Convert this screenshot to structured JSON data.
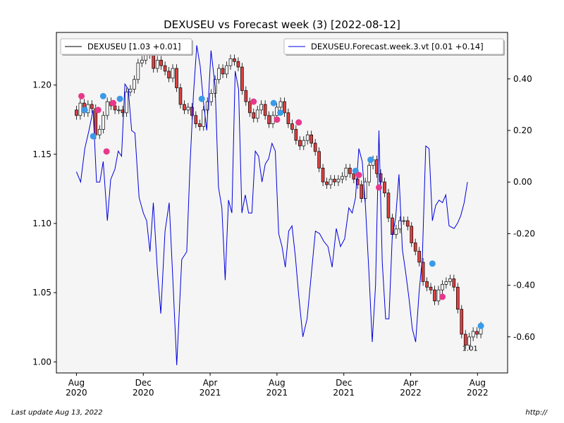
{
  "chart_data": {
    "type": "candlestick+line",
    "title": "DEXUSEU vs Forecast week (3) [2022-08-12]",
    "legend": [
      {
        "name": "DEXUSEU [1.03 +0.01]",
        "color": "#000000",
        "placement": "top-left"
      },
      {
        "name": "DEXUSEU.Forecast.week.3.vt [0.01 +0.14]",
        "color": "#0000dd",
        "placement": "top-right"
      }
    ],
    "x_ticks": [
      {
        "t": 0.0,
        "label": "Aug\n2020"
      },
      {
        "t": 4.0,
        "label": "Dec\n2020"
      },
      {
        "t": 8.0,
        "label": "Apr\n2021"
      },
      {
        "t": 12.0,
        "label": "Aug\n2021"
      },
      {
        "t": 16.0,
        "label": "Dec\n2021"
      },
      {
        "t": 20.0,
        "label": "Apr\n2022"
      },
      {
        "t": 24.0,
        "label": "Aug\n2022"
      }
    ],
    "xlim": [
      -1.2,
      25.8
    ],
    "y_left": {
      "ticks": [
        "1.00",
        "1.05",
        "1.10",
        "1.15",
        "1.20"
      ],
      "lim": [
        0.992,
        1.238
      ]
    },
    "y_right": {
      "ticks": [
        "-0.60",
        "-0.40",
        "-0.20",
        "0.00",
        "0.20",
        "0.40"
      ],
      "lim": [
        -0.74,
        0.58
      ]
    },
    "annotation": {
      "text": "1.01",
      "t": 23.55,
      "value": 1.008
    },
    "candles_weekly_close": [
      1.178,
      1.187,
      1.18,
      1.186,
      1.183,
      1.164,
      1.168,
      1.178,
      1.188,
      1.185,
      1.182,
      1.182,
      1.18,
      1.195,
      1.197,
      1.204,
      1.216,
      1.218,
      1.222,
      1.228,
      1.212,
      1.218,
      1.214,
      1.21,
      1.205,
      1.212,
      1.198,
      1.186,
      1.182,
      1.184,
      1.178,
      1.172,
      1.17,
      1.182,
      1.188,
      1.194,
      1.204,
      1.212,
      1.208,
      1.214,
      1.219,
      1.217,
      1.213,
      1.196,
      1.188,
      1.18,
      1.176,
      1.182,
      1.186,
      1.178,
      1.172,
      1.178,
      1.184,
      1.188,
      1.18,
      1.172,
      1.168,
      1.16,
      1.156,
      1.16,
      1.164,
      1.158,
      1.152,
      1.14,
      1.13,
      1.128,
      1.132,
      1.13,
      1.132,
      1.134,
      1.14,
      1.136,
      1.132,
      1.128,
      1.118,
      1.13,
      1.142,
      1.146,
      1.136,
      1.13,
      1.122,
      1.104,
      1.092,
      1.096,
      1.102,
      1.102,
      1.098,
      1.086,
      1.08,
      1.072,
      1.058,
      1.054,
      1.052,
      1.044,
      1.052,
      1.056,
      1.058,
      1.06,
      1.054,
      1.038,
      1.02,
      1.012,
      1.018,
      1.022,
      1.02,
      1.026
    ],
    "forecast_series": [
      [
        0.0,
        0.04
      ],
      [
        0.25,
        0.0
      ],
      [
        0.5,
        0.13
      ],
      [
        0.75,
        0.2
      ],
      [
        1.0,
        0.28
      ],
      [
        1.2,
        0.0
      ],
      [
        1.4,
        0.0
      ],
      [
        1.6,
        0.08
      ],
      [
        1.85,
        -0.15
      ],
      [
        2.05,
        0.01
      ],
      [
        2.3,
        0.05
      ],
      [
        2.5,
        0.12
      ],
      [
        2.7,
        0.1
      ],
      [
        2.9,
        0.38
      ],
      [
        3.1,
        0.36
      ],
      [
        3.3,
        0.2
      ],
      [
        3.5,
        0.19
      ],
      [
        3.75,
        -0.06
      ],
      [
        4.0,
        -0.12
      ],
      [
        4.2,
        -0.15
      ],
      [
        4.4,
        -0.27
      ],
      [
        4.6,
        -0.08
      ],
      [
        4.85,
        -0.35
      ],
      [
        5.05,
        -0.51
      ],
      [
        5.3,
        -0.19
      ],
      [
        5.55,
        -0.08
      ],
      [
        5.8,
        -0.42
      ],
      [
        6.0,
        -0.71
      ],
      [
        6.3,
        -0.3
      ],
      [
        6.6,
        -0.27
      ],
      [
        6.8,
        0.07
      ],
      [
        7.0,
        0.34
      ],
      [
        7.2,
        0.53
      ],
      [
        7.4,
        0.45
      ],
      [
        7.6,
        0.31
      ],
      [
        7.8,
        0.2
      ],
      [
        8.05,
        0.51
      ],
      [
        8.3,
        0.37
      ],
      [
        8.5,
        -0.02
      ],
      [
        8.7,
        -0.1
      ],
      [
        8.9,
        -0.38
      ],
      [
        9.1,
        -0.07
      ],
      [
        9.3,
        -0.12
      ],
      [
        9.5,
        0.43
      ],
      [
        9.7,
        0.36
      ],
      [
        9.9,
        -0.12
      ],
      [
        10.1,
        -0.05
      ],
      [
        10.3,
        -0.12
      ],
      [
        10.5,
        -0.12
      ],
      [
        10.7,
        0.12
      ],
      [
        10.9,
        0.1
      ],
      [
        11.1,
        0.0
      ],
      [
        11.3,
        0.07
      ],
      [
        11.5,
        0.09
      ],
      [
        11.7,
        0.15
      ],
      [
        11.9,
        0.12
      ],
      [
        12.1,
        -0.2
      ],
      [
        12.3,
        -0.25
      ],
      [
        12.5,
        -0.33
      ],
      [
        12.7,
        -0.19
      ],
      [
        12.9,
        -0.17
      ],
      [
        13.1,
        -0.29
      ],
      [
        13.3,
        -0.44
      ],
      [
        13.55,
        -0.6
      ],
      [
        13.8,
        -0.53
      ],
      [
        14.05,
        -0.36
      ],
      [
        14.3,
        -0.19
      ],
      [
        14.55,
        -0.2
      ],
      [
        14.8,
        -0.23
      ],
      [
        15.05,
        -0.25
      ],
      [
        15.3,
        -0.33
      ],
      [
        15.55,
        -0.18
      ],
      [
        15.8,
        -0.25
      ],
      [
        16.05,
        -0.22
      ],
      [
        16.3,
        -0.1
      ],
      [
        16.5,
        -0.12
      ],
      [
        16.7,
        -0.06
      ],
      [
        16.9,
        0.13
      ],
      [
        17.1,
        0.08
      ],
      [
        17.3,
        -0.1
      ],
      [
        17.5,
        -0.35
      ],
      [
        17.7,
        -0.62
      ],
      [
        17.9,
        -0.4
      ],
      [
        18.1,
        0.2
      ],
      [
        18.3,
        -0.31
      ],
      [
        18.5,
        -0.53
      ],
      [
        18.7,
        -0.53
      ],
      [
        18.9,
        -0.21
      ],
      [
        19.1,
        -0.14
      ],
      [
        19.3,
        0.03
      ],
      [
        19.5,
        -0.26
      ],
      [
        19.7,
        -0.35
      ],
      [
        19.9,
        -0.45
      ],
      [
        20.1,
        -0.57
      ],
      [
        20.3,
        -0.62
      ],
      [
        20.5,
        -0.43
      ],
      [
        20.7,
        -0.29
      ],
      [
        20.9,
        0.14
      ],
      [
        21.1,
        0.13
      ],
      [
        21.3,
        -0.15
      ],
      [
        21.5,
        -0.09
      ],
      [
        21.7,
        -0.07
      ],
      [
        21.9,
        -0.08
      ],
      [
        22.1,
        -0.05
      ],
      [
        22.3,
        -0.17
      ],
      [
        22.6,
        -0.18
      ],
      [
        22.8,
        -0.16
      ],
      [
        23.0,
        -0.13
      ],
      [
        23.2,
        -0.08
      ],
      [
        23.4,
        0.0
      ]
    ],
    "markers": [
      {
        "t": 0.3,
        "value": 1.192,
        "color": "#e8388a"
      },
      {
        "t": 0.5,
        "value": 1.182,
        "color": "#3b9ae8"
      },
      {
        "t": 1.0,
        "value": 1.163,
        "color": "#3b9ae8"
      },
      {
        "t": 1.3,
        "value": 1.182,
        "color": "#e8388a"
      },
      {
        "t": 1.6,
        "value": 1.192,
        "color": "#3b9ae8"
      },
      {
        "t": 1.8,
        "value": 1.152,
        "color": "#e8388a"
      },
      {
        "t": 2.2,
        "value": 1.187,
        "color": "#e8388a"
      },
      {
        "t": 2.6,
        "value": 1.19,
        "color": "#3b9ae8"
      },
      {
        "t": 7.5,
        "value": 1.19,
        "color": "#3b9ae8"
      },
      {
        "t": 10.6,
        "value": 1.188,
        "color": "#e8388a"
      },
      {
        "t": 11.8,
        "value": 1.187,
        "color": "#3b9ae8"
      },
      {
        "t": 12.0,
        "value": 1.175,
        "color": "#e8388a"
      },
      {
        "t": 12.2,
        "value": 1.18,
        "color": "#3b9ae8"
      },
      {
        "t": 13.3,
        "value": 1.173,
        "color": "#e8388a"
      },
      {
        "t": 16.7,
        "value": 1.138,
        "color": "#3b9ae8"
      },
      {
        "t": 16.9,
        "value": 1.135,
        "color": "#e8388a"
      },
      {
        "t": 17.6,
        "value": 1.146,
        "color": "#3b9ae8"
      },
      {
        "t": 18.1,
        "value": 1.126,
        "color": "#e8388a"
      },
      {
        "t": 21.3,
        "value": 1.071,
        "color": "#3b9ae8"
      },
      {
        "t": 21.9,
        "value": 1.047,
        "color": "#e8388a"
      },
      {
        "t": 24.2,
        "value": 1.026,
        "color": "#3b9ae8"
      }
    ]
  },
  "footer": {
    "left": "Last update Aug 13, 2022",
    "right": "http://"
  }
}
